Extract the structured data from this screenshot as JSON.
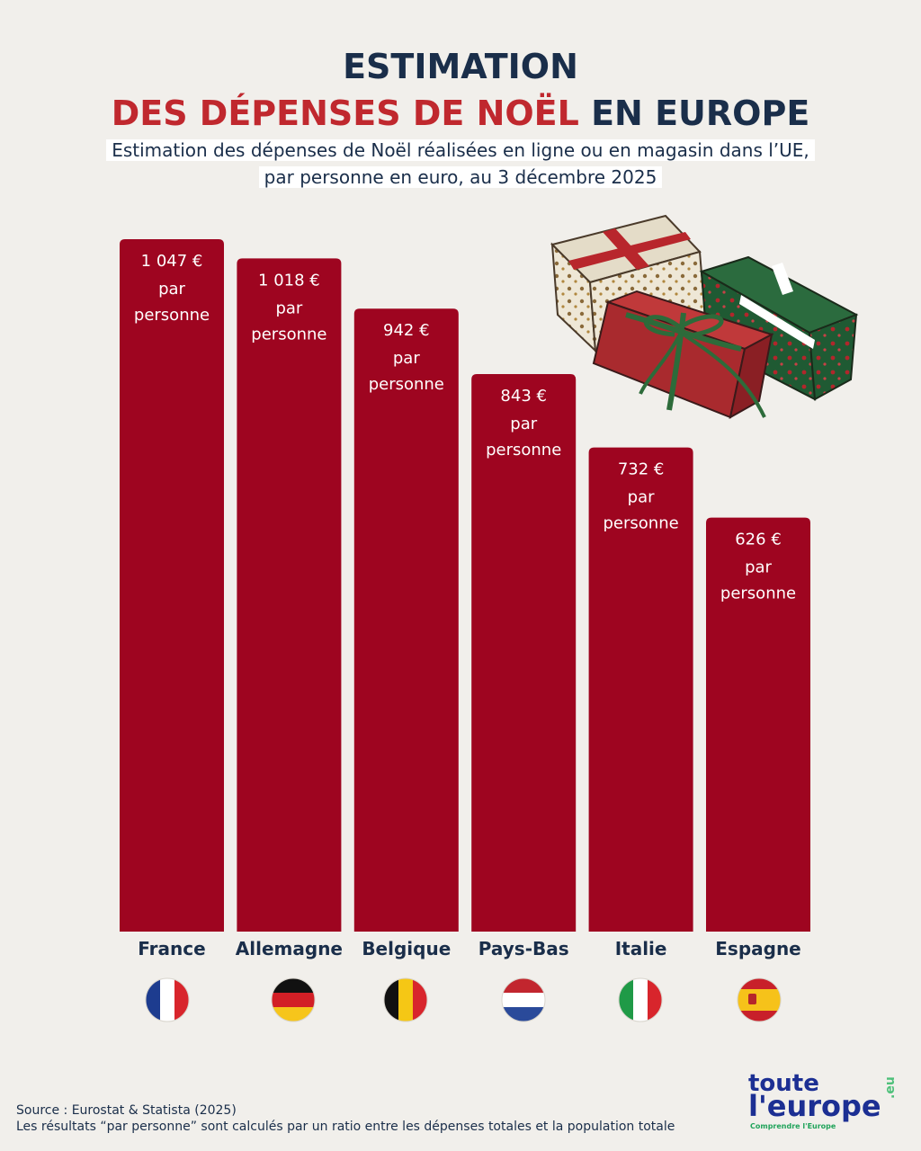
{
  "header": {
    "title_line1": "ESTIMATION",
    "title_line2_red": "DES DÉPENSES DE NOËL",
    "title_line2_navy": "EN EUROPE",
    "subtitle_line1": "Estimation des dépenses de Noël réalisées en ligne ou en magasin dans l’UE,",
    "subtitle_line2": "par personne en euro, au 3 décembre 2025"
  },
  "chart_data": {
    "type": "bar",
    "title": "ESTIMATION DES DÉPENSES DE NOËL EN EUROPE",
    "subtitle": "Estimation des dépenses de Noël réalisées en ligne ou en magasin dans l’UE, par personne en euro, au 3 décembre 2025",
    "categories": [
      "France",
      "Allemagne",
      "Belgique",
      "Pays-Bas",
      "Italie",
      "Espagne"
    ],
    "values": [
      1047,
      1018,
      942,
      843,
      732,
      626
    ],
    "data_labels": [
      "1 047 €",
      "1 018 €",
      "942 €",
      "843 €",
      "732 €",
      "626 €"
    ],
    "data_label_suffix_line1": "par",
    "data_label_suffix_line2": "personne",
    "ylim": [
      0,
      1047
    ],
    "grid": false,
    "bar_color": "#9e0520"
  },
  "flags": [
    {
      "country": "France",
      "icon": "france-flag-icon"
    },
    {
      "country": "Allemagne",
      "icon": "germany-flag-icon"
    },
    {
      "country": "Belgique",
      "icon": "belgium-flag-icon"
    },
    {
      "country": "Pays-Bas",
      "icon": "netherlands-flag-icon"
    },
    {
      "country": "Italie",
      "icon": "italy-flag-icon"
    },
    {
      "country": "Espagne",
      "icon": "spain-flag-icon"
    }
  ],
  "footer": {
    "source": "Source :  Eurostat & Statista (2025)",
    "note": "Les résultats “par personne” sont calculés par un ratio entre les dépenses totales et la population totale"
  },
  "logo": {
    "line1": "toute",
    "line2": "l'europe",
    "suffix": ".eu",
    "tagline": "Comprendre l'Europe"
  },
  "colors": {
    "navy": "#1a2e4a",
    "red_title": "#c0282e",
    "bar": "#9e0520",
    "background": "#f1efeb"
  }
}
